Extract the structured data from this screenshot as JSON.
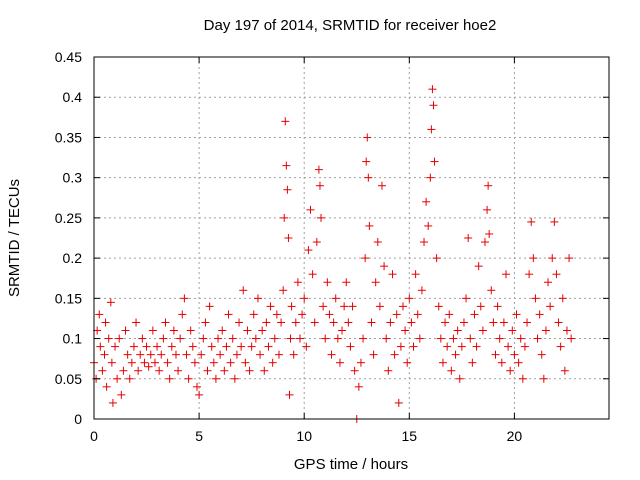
{
  "chart_data": {
    "type": "scatter",
    "title": "Day 197 of 2014, SRMTID for receiver hoe2",
    "xlabel": "GPS time / hours",
    "ylabel": "SRMTID / TECUs",
    "xlim": [
      0,
      24.5
    ],
    "ylim": [
      0,
      0.45
    ],
    "xticks": [
      0,
      5,
      10,
      15,
      20
    ],
    "xtick_labels": [
      "0",
      "5",
      "10",
      "15",
      "20"
    ],
    "yticks": [
      0,
      0.05,
      0.1,
      0.15,
      0.2,
      0.25,
      0.3,
      0.35,
      0.4,
      0.45
    ],
    "ytick_labels": [
      "0",
      "0.05",
      "0.1",
      "0.15",
      "0.2",
      "0.25",
      "0.3",
      "0.35",
      "0.4",
      "0.45"
    ],
    "grid": true,
    "marker": "+",
    "marker_color": "#e60000",
    "series": [
      {
        "name": "SRMTID",
        "points": [
          [
            0.0,
            0.07
          ],
          [
            0.1,
            0.05
          ],
          [
            0.15,
            0.11
          ],
          [
            0.25,
            0.13
          ],
          [
            0.3,
            0.09
          ],
          [
            0.4,
            0.06
          ],
          [
            0.5,
            0.08
          ],
          [
            0.55,
            0.12
          ],
          [
            0.6,
            0.04
          ],
          [
            0.7,
            0.1
          ],
          [
            0.8,
            0.145
          ],
          [
            0.85,
            0.07
          ],
          [
            0.9,
            0.02
          ],
          [
            1.0,
            0.09
          ],
          [
            1.1,
            0.05
          ],
          [
            1.2,
            0.1
          ],
          [
            1.3,
            0.03
          ],
          [
            1.4,
            0.06
          ],
          [
            1.5,
            0.11
          ],
          [
            1.6,
            0.08
          ],
          [
            1.7,
            0.05
          ],
          [
            1.8,
            0.07
          ],
          [
            1.9,
            0.09
          ],
          [
            2.0,
            0.12
          ],
          [
            2.1,
            0.06
          ],
          [
            2.2,
            0.08
          ],
          [
            2.3,
            0.1
          ],
          [
            2.4,
            0.07
          ],
          [
            2.5,
            0.09
          ],
          [
            2.6,
            0.065
          ],
          [
            2.7,
            0.08
          ],
          [
            2.8,
            0.11
          ],
          [
            2.9,
            0.07
          ],
          [
            3.0,
            0.09
          ],
          [
            3.1,
            0.06
          ],
          [
            3.2,
            0.08
          ],
          [
            3.3,
            0.1
          ],
          [
            3.4,
            0.12
          ],
          [
            3.5,
            0.07
          ],
          [
            3.6,
            0.05
          ],
          [
            3.7,
            0.09
          ],
          [
            3.8,
            0.11
          ],
          [
            3.9,
            0.08
          ],
          [
            4.0,
            0.06
          ],
          [
            4.1,
            0.1
          ],
          [
            4.2,
            0.13
          ],
          [
            4.3,
            0.15
          ],
          [
            4.4,
            0.08
          ],
          [
            4.5,
            0.05
          ],
          [
            4.6,
            0.11
          ],
          [
            4.7,
            0.09
          ],
          [
            4.8,
            0.07
          ],
          [
            4.9,
            0.04
          ],
          [
            5.0,
            0.03
          ],
          [
            5.1,
            0.08
          ],
          [
            5.2,
            0.1
          ],
          [
            5.3,
            0.12
          ],
          [
            5.4,
            0.06
          ],
          [
            5.5,
            0.14
          ],
          [
            5.6,
            0.09
          ],
          [
            5.7,
            0.07
          ],
          [
            5.8,
            0.05
          ],
          [
            5.9,
            0.1
          ],
          [
            6.0,
            0.08
          ],
          [
            6.1,
            0.11
          ],
          [
            6.2,
            0.06
          ],
          [
            6.3,
            0.09
          ],
          [
            6.4,
            0.13
          ],
          [
            6.5,
            0.07
          ],
          [
            6.6,
            0.1
          ],
          [
            6.7,
            0.05
          ],
          [
            6.8,
            0.08
          ],
          [
            6.9,
            0.12
          ],
          [
            7.0,
            0.09
          ],
          [
            7.1,
            0.16
          ],
          [
            7.2,
            0.07
          ],
          [
            7.3,
            0.11
          ],
          [
            7.4,
            0.06
          ],
          [
            7.5,
            0.09
          ],
          [
            7.6,
            0.13
          ],
          [
            7.7,
            0.1
          ],
          [
            7.8,
            0.15
          ],
          [
            7.9,
            0.08
          ],
          [
            8.0,
            0.11
          ],
          [
            8.1,
            0.06
          ],
          [
            8.2,
            0.12
          ],
          [
            8.3,
            0.09
          ],
          [
            8.4,
            0.14
          ],
          [
            8.5,
            0.07
          ],
          [
            8.6,
            0.1
          ],
          [
            8.7,
            0.13
          ],
          [
            8.8,
            0.08
          ],
          [
            8.9,
            0.12
          ],
          [
            9.0,
            0.16
          ],
          [
            9.05,
            0.25
          ],
          [
            9.1,
            0.37
          ],
          [
            9.15,
            0.315
          ],
          [
            9.2,
            0.285
          ],
          [
            9.25,
            0.225
          ],
          [
            9.3,
            0.03
          ],
          [
            9.35,
            0.1
          ],
          [
            9.4,
            0.14
          ],
          [
            9.5,
            0.08
          ],
          [
            9.6,
            0.12
          ],
          [
            9.7,
            0.17
          ],
          [
            9.8,
            0.1
          ],
          [
            9.9,
            0.13
          ],
          [
            10.0,
            0.15
          ],
          [
            10.1,
            0.09
          ],
          [
            10.2,
            0.21
          ],
          [
            10.3,
            0.26
          ],
          [
            10.4,
            0.18
          ],
          [
            10.5,
            0.12
          ],
          [
            10.6,
            0.22
          ],
          [
            10.7,
            0.31
          ],
          [
            10.75,
            0.29
          ],
          [
            10.8,
            0.25
          ],
          [
            10.9,
            0.14
          ],
          [
            11.0,
            0.1
          ],
          [
            11.1,
            0.17
          ],
          [
            11.2,
            0.13
          ],
          [
            11.3,
            0.08
          ],
          [
            11.4,
            0.12
          ],
          [
            11.5,
            0.15
          ],
          [
            11.6,
            0.1
          ],
          [
            11.7,
            0.07
          ],
          [
            11.8,
            0.11
          ],
          [
            11.9,
            0.14
          ],
          [
            12.0,
            0.17
          ],
          [
            12.1,
            0.12
          ],
          [
            12.2,
            0.09
          ],
          [
            12.3,
            0.14
          ],
          [
            12.4,
            0.06
          ],
          [
            12.5,
            0.0
          ],
          [
            12.6,
            0.04
          ],
          [
            12.7,
            0.07
          ],
          [
            12.8,
            0.1
          ],
          [
            12.9,
            0.2
          ],
          [
            12.95,
            0.32
          ],
          [
            13.0,
            0.35
          ],
          [
            13.05,
            0.3
          ],
          [
            13.1,
            0.24
          ],
          [
            13.2,
            0.12
          ],
          [
            13.3,
            0.08
          ],
          [
            13.4,
            0.17
          ],
          [
            13.5,
            0.22
          ],
          [
            13.6,
            0.14
          ],
          [
            13.7,
            0.29
          ],
          [
            13.8,
            0.19
          ],
          [
            13.9,
            0.1
          ],
          [
            14.0,
            0.06
          ],
          [
            14.1,
            0.12
          ],
          [
            14.2,
            0.18
          ],
          [
            14.3,
            0.08
          ],
          [
            14.4,
            0.13
          ],
          [
            14.5,
            0.02
          ],
          [
            14.6,
            0.09
          ],
          [
            14.7,
            0.14
          ],
          [
            14.8,
            0.11
          ],
          [
            14.9,
            0.07
          ],
          [
            15.0,
            0.15
          ],
          [
            15.1,
            0.12
          ],
          [
            15.2,
            0.09
          ],
          [
            15.3,
            0.18
          ],
          [
            15.4,
            0.13
          ],
          [
            15.5,
            0.1
          ],
          [
            15.6,
            0.16
          ],
          [
            15.7,
            0.22
          ],
          [
            15.8,
            0.27
          ],
          [
            15.9,
            0.24
          ],
          [
            16.0,
            0.3
          ],
          [
            16.05,
            0.36
          ],
          [
            16.1,
            0.41
          ],
          [
            16.15,
            0.39
          ],
          [
            16.2,
            0.32
          ],
          [
            16.3,
            0.2
          ],
          [
            16.4,
            0.14
          ],
          [
            16.5,
            0.1
          ],
          [
            16.6,
            0.07
          ],
          [
            16.7,
            0.12
          ],
          [
            16.8,
            0.09
          ],
          [
            16.9,
            0.13
          ],
          [
            17.0,
            0.06
          ],
          [
            17.1,
            0.1
          ],
          [
            17.2,
            0.08
          ],
          [
            17.3,
            0.11
          ],
          [
            17.4,
            0.05
          ],
          [
            17.5,
            0.09
          ],
          [
            17.6,
            0.12
          ],
          [
            17.7,
            0.15
          ],
          [
            17.8,
            0.225
          ],
          [
            17.9,
            0.1
          ],
          [
            18.0,
            0.07
          ],
          [
            18.1,
            0.13
          ],
          [
            18.2,
            0.09
          ],
          [
            18.3,
            0.19
          ],
          [
            18.4,
            0.14
          ],
          [
            18.5,
            0.11
          ],
          [
            18.6,
            0.22
          ],
          [
            18.7,
            0.26
          ],
          [
            18.75,
            0.29
          ],
          [
            18.8,
            0.23
          ],
          [
            18.9,
            0.16
          ],
          [
            19.0,
            0.12
          ],
          [
            19.1,
            0.08
          ],
          [
            19.2,
            0.14
          ],
          [
            19.3,
            0.1
          ],
          [
            19.4,
            0.07
          ],
          [
            19.5,
            0.12
          ],
          [
            19.6,
            0.18
          ],
          [
            19.7,
            0.09
          ],
          [
            19.8,
            0.06
          ],
          [
            19.9,
            0.11
          ],
          [
            20.0,
            0.08
          ],
          [
            20.1,
            0.13
          ],
          [
            20.2,
            0.07
          ],
          [
            20.3,
            0.1
          ],
          [
            20.4,
            0.05
          ],
          [
            20.5,
            0.09
          ],
          [
            20.6,
            0.12
          ],
          [
            20.7,
            0.18
          ],
          [
            20.8,
            0.245
          ],
          [
            20.9,
            0.2
          ],
          [
            21.0,
            0.15
          ],
          [
            21.1,
            0.1
          ],
          [
            21.2,
            0.13
          ],
          [
            21.3,
            0.08
          ],
          [
            21.4,
            0.05
          ],
          [
            21.5,
            0.11
          ],
          [
            21.6,
            0.17
          ],
          [
            21.7,
            0.14
          ],
          [
            21.8,
            0.2
          ],
          [
            21.9,
            0.245
          ],
          [
            22.0,
            0.18
          ],
          [
            22.1,
            0.12
          ],
          [
            22.2,
            0.09
          ],
          [
            22.3,
            0.15
          ],
          [
            22.4,
            0.06
          ],
          [
            22.5,
            0.11
          ],
          [
            22.6,
            0.2
          ],
          [
            22.7,
            0.1
          ]
        ]
      }
    ]
  }
}
